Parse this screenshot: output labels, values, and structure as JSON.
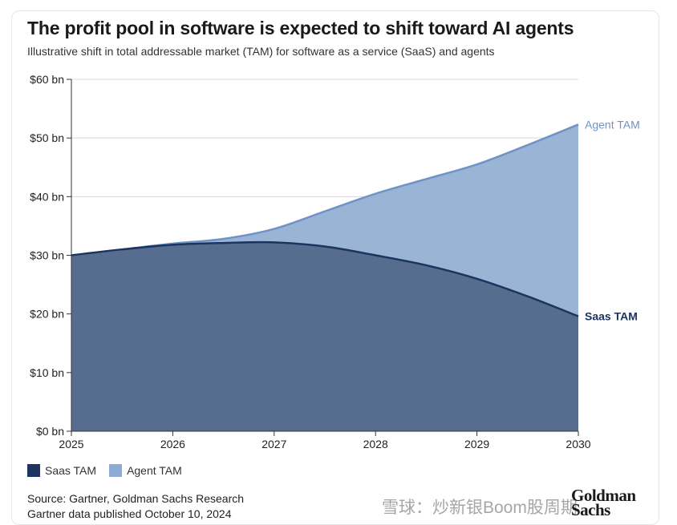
{
  "title": "The profit pool in software is expected to shift toward AI agents",
  "subtitle": "Illustrative shift in total addressable market (TAM) for software as a service (SaaS) and agents",
  "legend": [
    {
      "label": "Saas TAM",
      "color": "#1b3460"
    },
    {
      "label": "Agent TAM",
      "color": "#8cabd6"
    }
  ],
  "source": {
    "line1": "Source: Gartner, Goldman Sachs Research",
    "line2": "Gartner data published October 10, 2024"
  },
  "logo": {
    "line1": "Goldman",
    "line2": "Sachs"
  },
  "watermark": "雪球：炒新银Boom股周期",
  "colors": {
    "saas_fill": "#566d8f",
    "saas_line": "#1b3460",
    "agent_fill": "#9ab4d6",
    "agent_line": "#6f93c7",
    "grid": "#d9d9d9",
    "axis": "#333333"
  },
  "chart_data": {
    "type": "area",
    "title": "The profit pool in software is expected to shift toward AI agents",
    "subtitle": "Illustrative shift in total addressable market (TAM) for software as a service (SaaS) and agents",
    "x_ticks": [
      "2025",
      "2026",
      "2027",
      "2028",
      "2029",
      "2030"
    ],
    "y_ticks": [
      "$0 bn",
      "$10 bn",
      "$20 bn",
      "$30 bn",
      "$40 bn",
      "$50 bn",
      "$60 bn"
    ],
    "ylim": [
      0,
      60
    ],
    "xlim": [
      2025,
      2030
    ],
    "grid": true,
    "legend_position": "bottom-left",
    "series": [
      {
        "name": "Agent TAM",
        "end_label": "Agent TAM",
        "x": [
          2025,
          2025.5,
          2026,
          2026.5,
          2027,
          2027.5,
          2028,
          2028.5,
          2029,
          2029.5,
          2030
        ],
        "values": [
          30,
          31.0,
          32.0,
          32.8,
          34.5,
          37.5,
          40.5,
          43.0,
          45.5,
          48.8,
          52.3
        ]
      },
      {
        "name": "Saas TAM",
        "end_label": "Saas TAM",
        "x": [
          2025,
          2025.5,
          2026,
          2026.5,
          2027,
          2027.5,
          2028,
          2028.5,
          2029,
          2029.5,
          2030
        ],
        "values": [
          30,
          31.0,
          31.8,
          32.1,
          32.2,
          31.5,
          30.0,
          28.3,
          26.0,
          23.0,
          19.6
        ]
      }
    ]
  }
}
